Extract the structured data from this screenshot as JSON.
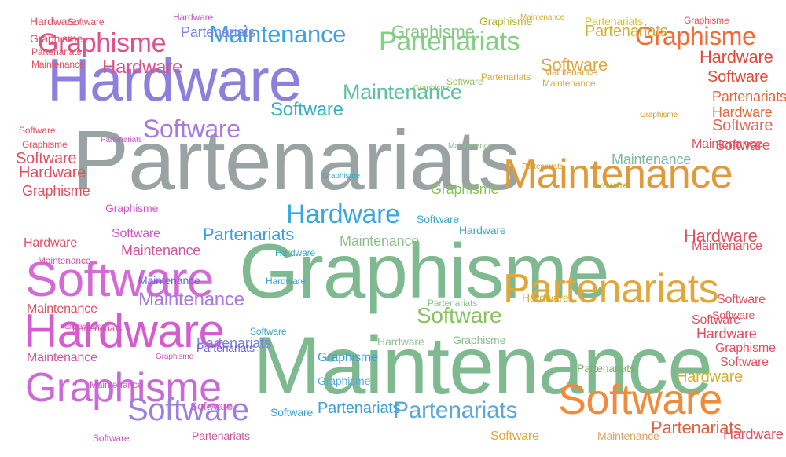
{
  "words": [
    {
      "text": "Partenariats",
      "color": "#99a3a4"
    },
    {
      "text": "Maintenance",
      "color": "#7fb98f"
    },
    {
      "text": "Graphisme",
      "color": "#7fb98f"
    },
    {
      "text": "Hardware",
      "color": "#8e7fdc"
    },
    {
      "text": "Software",
      "color": "#d36ad6"
    },
    {
      "text": "Hardware",
      "color": "#d65bcf"
    },
    {
      "text": "Graphisme",
      "color": "#c96ad6"
    },
    {
      "text": "Partenariats",
      "color": "#e0a83a"
    },
    {
      "text": "Maintenance",
      "color": "#e09a3a"
    },
    {
      "text": "Software",
      "color": "#f08b3a"
    },
    {
      "text": "Partenariats",
      "color": "#7fd07f"
    },
    {
      "text": "Maintenance",
      "color": "#5dc0a0"
    },
    {
      "text": "Maintenance",
      "color": "#3ea3e0"
    },
    {
      "text": "Graphisme",
      "color": "#e0508a"
    },
    {
      "text": "Graphisme",
      "color": "#f06a3a"
    },
    {
      "text": "Hardware",
      "color": "#3aa8e0"
    },
    {
      "text": "Software",
      "color": "#a878e0"
    },
    {
      "text": "Software",
      "color": "#9a80e0"
    },
    {
      "text": "Hardware",
      "color": "#e0508a"
    },
    {
      "text": "Software",
      "color": "#e0a83a"
    },
    {
      "text": "Partenariats",
      "color": "#d0b030"
    },
    {
      "text": "Partenariats",
      "color": "#7a88e0"
    },
    {
      "text": "Graphisme",
      "color": "#8ac88a"
    },
    {
      "text": "Software",
      "color": "#8ac060"
    },
    {
      "text": "Hardware",
      "color": "#e04a3a"
    },
    {
      "text": "Software",
      "color": "#e04a3a"
    },
    {
      "text": "Software",
      "color": "#3ab0c0"
    },
    {
      "text": "Partenariats",
      "color": "#3aa0e0"
    },
    {
      "text": "Maintenance",
      "color": "#a878e0"
    },
    {
      "text": "Partenariats",
      "color": "#5aa8d8"
    },
    {
      "text": "Graphisme",
      "color": "#8ac060"
    },
    {
      "text": "Partenariats",
      "color": "#e06040"
    },
    {
      "text": "Software",
      "color": "#e05060"
    },
    {
      "text": "Hardware",
      "color": "#e05060"
    },
    {
      "text": "Graphisme",
      "color": "#e05060"
    },
    {
      "text": "Maintenance",
      "color": "#e05060"
    },
    {
      "text": "Hardware",
      "color": "#e05060"
    },
    {
      "text": "Partenariats",
      "color": "#d6c030"
    },
    {
      "text": "Maintenance",
      "color": "#e05060"
    },
    {
      "text": "Hardware",
      "color": "#e05060"
    },
    {
      "text": "Maintenance",
      "color": "#7ab8a0"
    },
    {
      "text": "Software",
      "color": "#e06a5a"
    },
    {
      "text": "Hardware",
      "color": "#b0b030"
    },
    {
      "text": "Maintenance",
      "color": "#8cc08c"
    },
    {
      "text": "Software",
      "color": "#3aa0d8"
    },
    {
      "text": "Partenariats",
      "color": "#3aa0d8"
    },
    {
      "text": "Software",
      "color": "#d055c8"
    },
    {
      "text": "Maintenance",
      "color": "#d055a0"
    },
    {
      "text": "Graphisme",
      "color": "#d055c8"
    },
    {
      "text": "Graphisme",
      "color": "#3aa0e0"
    },
    {
      "text": "Partenariats",
      "color": "#7a80e0"
    },
    {
      "text": "Hardware",
      "color": "#e05060"
    },
    {
      "text": "Software",
      "color": "#e05060"
    },
    {
      "text": "Maintenance",
      "color": "#e05060"
    },
    {
      "text": "Software",
      "color": "#e05060"
    },
    {
      "text": "Hardware",
      "color": "#d0b030"
    },
    {
      "text": "Partenariats",
      "color": "#7ab060"
    },
    {
      "text": "Maintenance",
      "color": "#e0a060"
    },
    {
      "text": "Partenariats",
      "color": "#e06a40"
    },
    {
      "text": "Hardware",
      "color": "#e06a40"
    },
    {
      "text": "Maintenance",
      "color": "#d055a0"
    },
    {
      "text": "Partenariats",
      "color": "#d055a0"
    },
    {
      "text": "Graphisme",
      "color": "#e05060"
    },
    {
      "text": "Software",
      "color": "#e05060"
    },
    {
      "text": "Hardware",
      "color": "#e05060"
    },
    {
      "text": "Graphisme",
      "color": "#e05060"
    },
    {
      "text": "Software",
      "color": "#e05060"
    },
    {
      "text": "Software",
      "color": "#e05060"
    },
    {
      "text": "Hardware",
      "color": "#d0b030"
    },
    {
      "text": "Maintenance",
      "color": "#6a60e0"
    },
    {
      "text": "Partenariats",
      "color": "#6a60e0"
    },
    {
      "text": "Graphisme",
      "color": "#5aa8e0"
    },
    {
      "text": "Hardware",
      "color": "#8cc08c"
    },
    {
      "text": "Graphisme",
      "color": "#8cc08c"
    },
    {
      "text": "Software",
      "color": "#3aa8c0"
    },
    {
      "text": "Hardware",
      "color": "#3aa8c0"
    },
    {
      "text": "Software",
      "color": "#d055c8"
    },
    {
      "text": "Partenariats",
      "color": "#d055a0"
    },
    {
      "text": "Maintenance",
      "color": "#d055a0"
    },
    {
      "text": "Software",
      "color": "#e05060"
    },
    {
      "text": "Graphisme",
      "color": "#e05060"
    },
    {
      "text": "Maintenance",
      "color": "#e05060"
    },
    {
      "text": "Partenariats",
      "color": "#e05060"
    },
    {
      "text": "Graphisme",
      "color": "#e05060"
    },
    {
      "text": "Hardware",
      "color": "#e05060"
    },
    {
      "text": "Maintenance",
      "color": "#e09a3a"
    },
    {
      "text": "Partenariats",
      "color": "#d0b030"
    },
    {
      "text": "Maintenance",
      "color": "#d0b030"
    },
    {
      "text": "Software",
      "color": "#8ac060"
    },
    {
      "text": "Software",
      "color": "#e0a83a"
    },
    {
      "text": "Graphisme",
      "color": "#b0b030"
    },
    {
      "text": "Maintenance",
      "color": "#d0b030"
    },
    {
      "text": "Graphisme",
      "color": "#8ac060"
    },
    {
      "text": "Software",
      "color": "#e05060"
    },
    {
      "text": "Hardware",
      "color": "#3aa0e0"
    },
    {
      "text": "Partenariats",
      "color": "#d055c8"
    },
    {
      "text": "Graphisme",
      "color": "#3aa8c0"
    },
    {
      "text": "Partenariats",
      "color": "#8cc08c"
    },
    {
      "text": "Partenariats",
      "color": "#d0a030"
    },
    {
      "text": "Graphisme",
      "color": "#d0a030"
    },
    {
      "text": "Maintenance",
      "color": "#8cc08c"
    },
    {
      "text": "Software",
      "color": "#3aa8c0"
    },
    {
      "text": "Hardware",
      "color": "#3aa8c0"
    },
    {
      "text": "Software",
      "color": "#d055c8"
    },
    {
      "text": "Partenariats",
      "color": "#d055c8"
    },
    {
      "text": "Hardware",
      "color": "#d055c8"
    },
    {
      "text": "Maintenance",
      "color": "#d055c8"
    },
    {
      "text": "Graphisme",
      "color": "#d055c8"
    }
  ]
}
